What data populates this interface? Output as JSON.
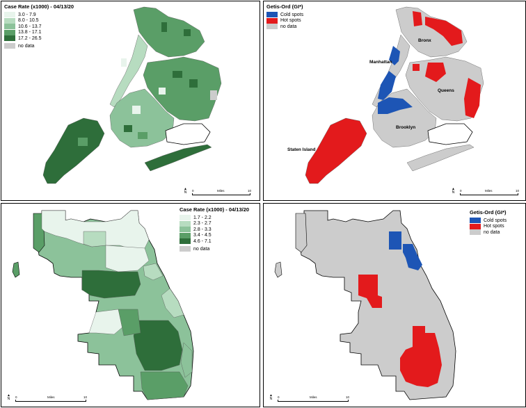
{
  "panels": {
    "nyc_rate": {
      "legend_title": "Case Rate (x1000) - 04/13/20",
      "items": [
        {
          "label": "3.0 - 7.9",
          "color": "#e8f4ec"
        },
        {
          "label": "8.0 - 10.5",
          "color": "#b7dcc0"
        },
        {
          "label": "10.6 - 13.7",
          "color": "#8cc29a"
        },
        {
          "label": "13.8 - 17.1",
          "color": "#5a9e67"
        },
        {
          "label": "17.2 - 26.5",
          "color": "#2e6e3a"
        }
      ],
      "nodata_label": "no data",
      "scale": {
        "start": "0",
        "unit": "Miles",
        "end": "10"
      },
      "north": "N"
    },
    "nyc_gi": {
      "legend_title": "Getis-Ord (GI*)",
      "items": [
        {
          "label": "Cold spots",
          "color": "#1d55b5"
        },
        {
          "label": "Hot spots",
          "color": "#e31a1c"
        }
      ],
      "nodata_label": "no data",
      "places": {
        "bronx": "Bronx",
        "manhattan": "Manhattan",
        "queens": "Queens",
        "brooklyn": "Brooklyn",
        "staten_island": "Staten Island"
      },
      "scale": {
        "start": "0",
        "unit": "Miles",
        "end": "10"
      },
      "north": "N"
    },
    "chi_rate": {
      "legend_title": "Case Rate (x1000) - 04/13/20",
      "items": [
        {
          "label": "1.7 - 2.2",
          "color": "#e8f4ec"
        },
        {
          "label": "2.3 - 2.7",
          "color": "#b7dcc0"
        },
        {
          "label": "2.8 - 3.3",
          "color": "#8cc29a"
        },
        {
          "label": "3.4 - 4.5",
          "color": "#5a9e67"
        },
        {
          "label": "4.6 - 7.1",
          "color": "#2e6e3a"
        }
      ],
      "nodata_label": "no data",
      "scale": {
        "start": "0",
        "unit": "Miles",
        "end": "10"
      },
      "north": "N"
    },
    "chi_gi": {
      "legend_title": "Getis-Ord (GI*)",
      "items": [
        {
          "label": "Cold spots",
          "color": "#1d55b5"
        },
        {
          "label": "Hot spots",
          "color": "#e31a1c"
        }
      ],
      "nodata_label": "no data",
      "scale": {
        "start": "0",
        "unit": "Miles",
        "end": "10"
      },
      "north": "N"
    }
  },
  "colors": {
    "nodata": "#cccccc",
    "outline": "#000000"
  }
}
